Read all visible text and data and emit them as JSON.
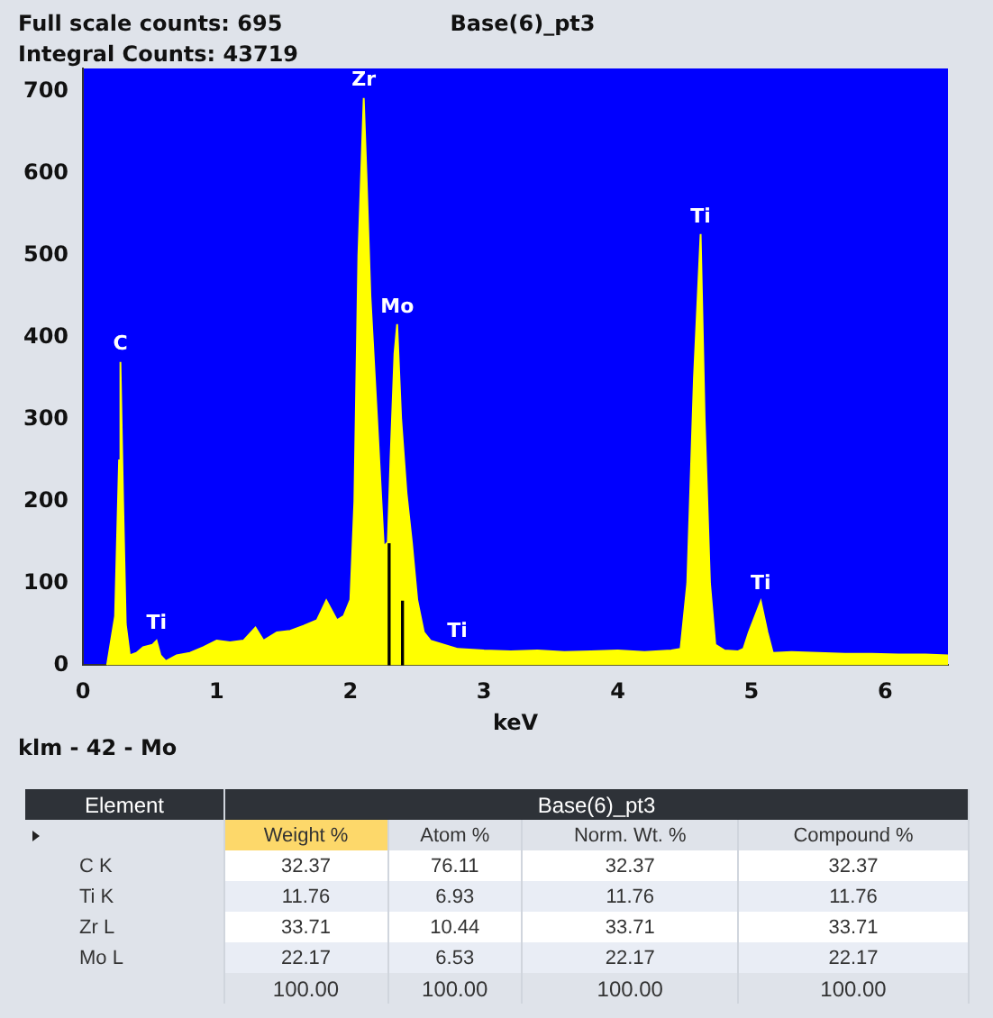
{
  "chart_data": [
    {
      "type": "area",
      "title": "Base(6)_pt3",
      "xlabel": "keV",
      "annotations": [
        "Full scale counts: 695",
        "Integral Counts: 43719",
        "klm - 42 - Mo",
        {
          "text": "C",
          "x": 0.28,
          "y": 370
        },
        {
          "text": "Ti",
          "x": 0.55,
          "y": 30
        },
        {
          "text": "Zr",
          "x": 2.1,
          "y": 692
        },
        {
          "text": "Mo",
          "x": 2.35,
          "y": 416
        },
        {
          "text": "Ti",
          "x": 2.8,
          "y": 20
        },
        {
          "text": "Ti",
          "x": 4.62,
          "y": 526
        },
        {
          "text": "Ti",
          "x": 5.07,
          "y": 78
        }
      ],
      "xlim": [
        0,
        6.47
      ],
      "ylim": [
        0,
        728
      ],
      "xticks": [
        0,
        1,
        2,
        3,
        4,
        5,
        6
      ],
      "yticks": [
        0,
        100,
        200,
        300,
        400,
        500,
        600,
        700
      ],
      "grid": false,
      "legend": false,
      "series": [
        {
          "color": "#ffff00",
          "x": [
            0.18,
            0.2,
            0.24,
            0.27,
            0.28,
            0.3,
            0.32,
            0.35,
            0.4,
            0.45,
            0.52,
            0.55,
            0.58,
            0.62,
            0.7,
            0.8,
            0.9,
            1.0,
            1.1,
            1.2,
            1.29,
            1.35,
            1.45,
            1.55,
            1.65,
            1.75,
            1.82,
            1.85,
            1.9,
            1.95,
            2.0,
            2.03,
            2.06,
            2.1,
            2.12,
            2.15,
            2.2,
            2.25,
            2.28,
            2.3,
            2.33,
            2.35,
            2.38,
            2.42,
            2.46,
            2.5,
            2.55,
            2.6,
            2.7,
            2.8,
            3.0,
            3.2,
            3.4,
            3.6,
            3.8,
            4.0,
            4.2,
            4.4,
            4.47,
            4.52,
            4.57,
            4.62,
            4.65,
            4.69,
            4.73,
            4.8,
            4.9,
            4.94,
            4.98,
            5.07,
            5.12,
            5.16,
            5.3,
            5.5,
            5.7,
            5.9,
            6.1,
            6.3,
            6.47
          ],
          "values": [
            0,
            20,
            60,
            250,
            370,
            200,
            50,
            12,
            15,
            22,
            25,
            30,
            12,
            5,
            12,
            15,
            22,
            30,
            28,
            30,
            46,
            30,
            40,
            42,
            48,
            55,
            79,
            70,
            55,
            60,
            80,
            200,
            500,
            692,
            600,
            450,
            300,
            145,
            150,
            250,
            380,
            416,
            300,
            210,
            150,
            80,
            40,
            30,
            25,
            20,
            18,
            17,
            18,
            16,
            17,
            18,
            16,
            18,
            20,
            100,
            350,
            526,
            300,
            100,
            25,
            18,
            17,
            20,
            40,
            78,
            40,
            15,
            16,
            15,
            14,
            14,
            13,
            13,
            12
          ]
        },
        {
          "type": "bar",
          "color": "#000000",
          "x": [
            2.29,
            2.39
          ],
          "values": [
            148,
            78
          ]
        }
      ]
    },
    {
      "type": "other",
      "title": "Base(6)_pt3",
      "ylabel": "Element",
      "categories": [
        "Weight %",
        "Atom %",
        "Norm. Wt. %",
        "Compound %"
      ],
      "y_categories": [
        "C K",
        "Ti K",
        "Zr L",
        "Mo L",
        null
      ],
      "cell_labels": [
        [
          "32.37",
          "76.11",
          "32.37",
          "32.37"
        ],
        [
          "11.76",
          "6.93",
          "11.76",
          "11.76"
        ],
        [
          "33.71",
          "10.44",
          "33.71",
          "33.71"
        ],
        [
          "22.17",
          "6.53",
          "22.17",
          "22.17"
        ],
        [
          "100.00",
          "100.00",
          "100.00",
          "100.00"
        ]
      ]
    }
  ]
}
